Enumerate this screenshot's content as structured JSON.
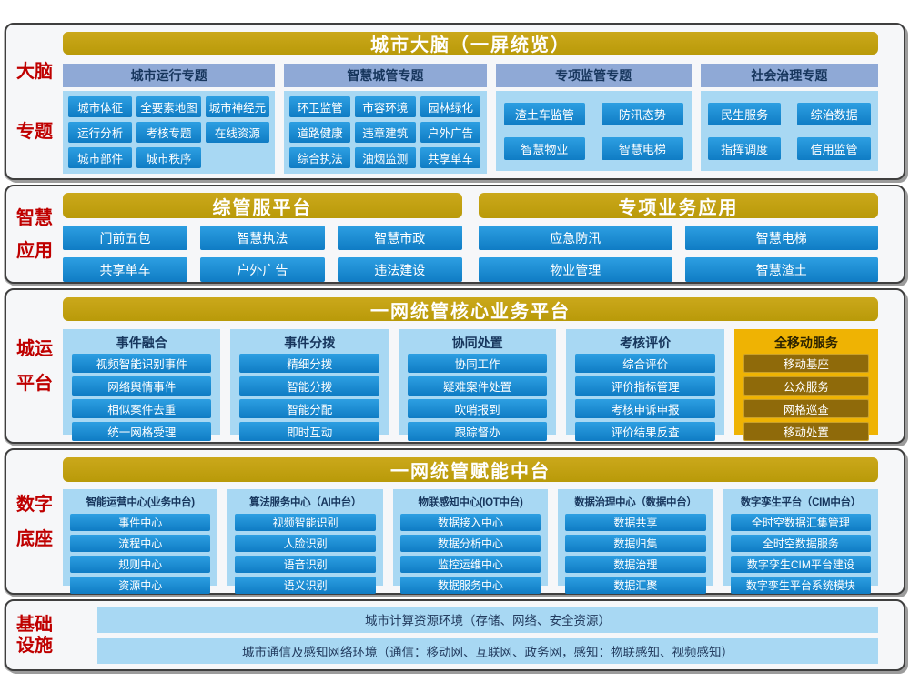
{
  "dots": "......",
  "colors": {
    "gold": "#c2a112",
    "accent_gold": "#efb303",
    "amber_button": "#8f6a0a",
    "blue_button": "#1583cb",
    "light_blue": "#a8d8f3",
    "periwinkle_header": "#8fa9d6",
    "label_red": "#bf0000",
    "navy_text": "#17365d"
  },
  "brain": {
    "label": [
      "大脑",
      "专题"
    ],
    "title": "城市大脑（一屏统览）",
    "columns": [
      {
        "header": "城市运行专题",
        "items": [
          "城市体征",
          "全要素地图",
          "城市神经元",
          "运行分析",
          "考核专题",
          "在线资源",
          "城市部件",
          "城市秩序"
        ]
      },
      {
        "header": "智慧城管专题",
        "items": [
          "环卫监管",
          "市容环境",
          "园林绿化",
          "道路健康",
          "违章建筑",
          "户外广告",
          "综合执法",
          "油烟监测",
          "共享单车"
        ]
      },
      {
        "header": "专项监管专题",
        "items": [
          "渣土车监管",
          "防汛态势",
          "智慧物业",
          "智慧电梯"
        ]
      },
      {
        "header": "社会治理专题",
        "items": [
          "民生服务",
          "综治数据",
          "指挥调度",
          "信用监管"
        ]
      }
    ]
  },
  "apps": {
    "label": [
      "智慧",
      "应用"
    ],
    "groups": [
      {
        "title": "综管服平台",
        "items": [
          "门前五包",
          "智慧执法",
          "智慧市政",
          "共享单车",
          "户外广告",
          "违法建设"
        ]
      },
      {
        "title": "专项业务应用",
        "items": [
          "应急防汛",
          "智慧电梯",
          "物业管理",
          "智慧渣土"
        ]
      }
    ]
  },
  "core": {
    "label": [
      "城运",
      "平台"
    ],
    "title": "一网统管核心业务平台",
    "columns": [
      {
        "header": "事件融合",
        "items": [
          "视频智能识别事件",
          "网络舆情事件",
          "相似案件去重",
          "统一网格受理"
        ]
      },
      {
        "header": "事件分拨",
        "items": [
          "精细分拨",
          "智能分拨",
          "智能分配",
          "即时互动"
        ]
      },
      {
        "header": "协同处置",
        "items": [
          "协同工作",
          "疑难案件处置",
          "吹哨报到",
          "跟踪督办"
        ]
      },
      {
        "header": "考核评价",
        "items": [
          "综合评价",
          "评价指标管理",
          "考核申诉申报",
          "评价结果反查"
        ]
      },
      {
        "header": "全移动服务",
        "items": [
          "移动基座",
          "公众服务",
          "网格巡查",
          "移动处置"
        ]
      }
    ]
  },
  "middle": {
    "label": [
      "数字",
      "底座"
    ],
    "title": "一网统管赋能中台",
    "columns": [
      {
        "header": "智能运营中心(业务中台)",
        "items": [
          "事件中心",
          "流程中心",
          "规则中心",
          "资源中心"
        ]
      },
      {
        "header": "算法服务中心（AI中台）",
        "items": [
          "视频智能识别",
          "人脸识别",
          "语音识别",
          "语义识别"
        ]
      },
      {
        "header": "物联感知中心(IOT中台)",
        "items": [
          "数据接入中心",
          "数据分析中心",
          "监控运维中心",
          "数据服务中心"
        ]
      },
      {
        "header": "数据治理中心（数据中台）",
        "items": [
          "数据共享",
          "数据归集",
          "数据治理",
          "数据汇聚"
        ]
      },
      {
        "header": "数字孪生平台（CIM中台）",
        "items": [
          "全时空数据汇集管理",
          "全时空数据服务",
          "数字孪生CIM平台建设",
          "数字孪生平台系统模块"
        ]
      }
    ]
  },
  "infra": {
    "label": [
      "基础",
      "设施"
    ],
    "bars": [
      "城市计算资源环境（存储、网络、安全资源）",
      "城市通信及感知网络环境（通信：移动网、互联网、政务网，感知：物联感知、视频感知）"
    ]
  }
}
